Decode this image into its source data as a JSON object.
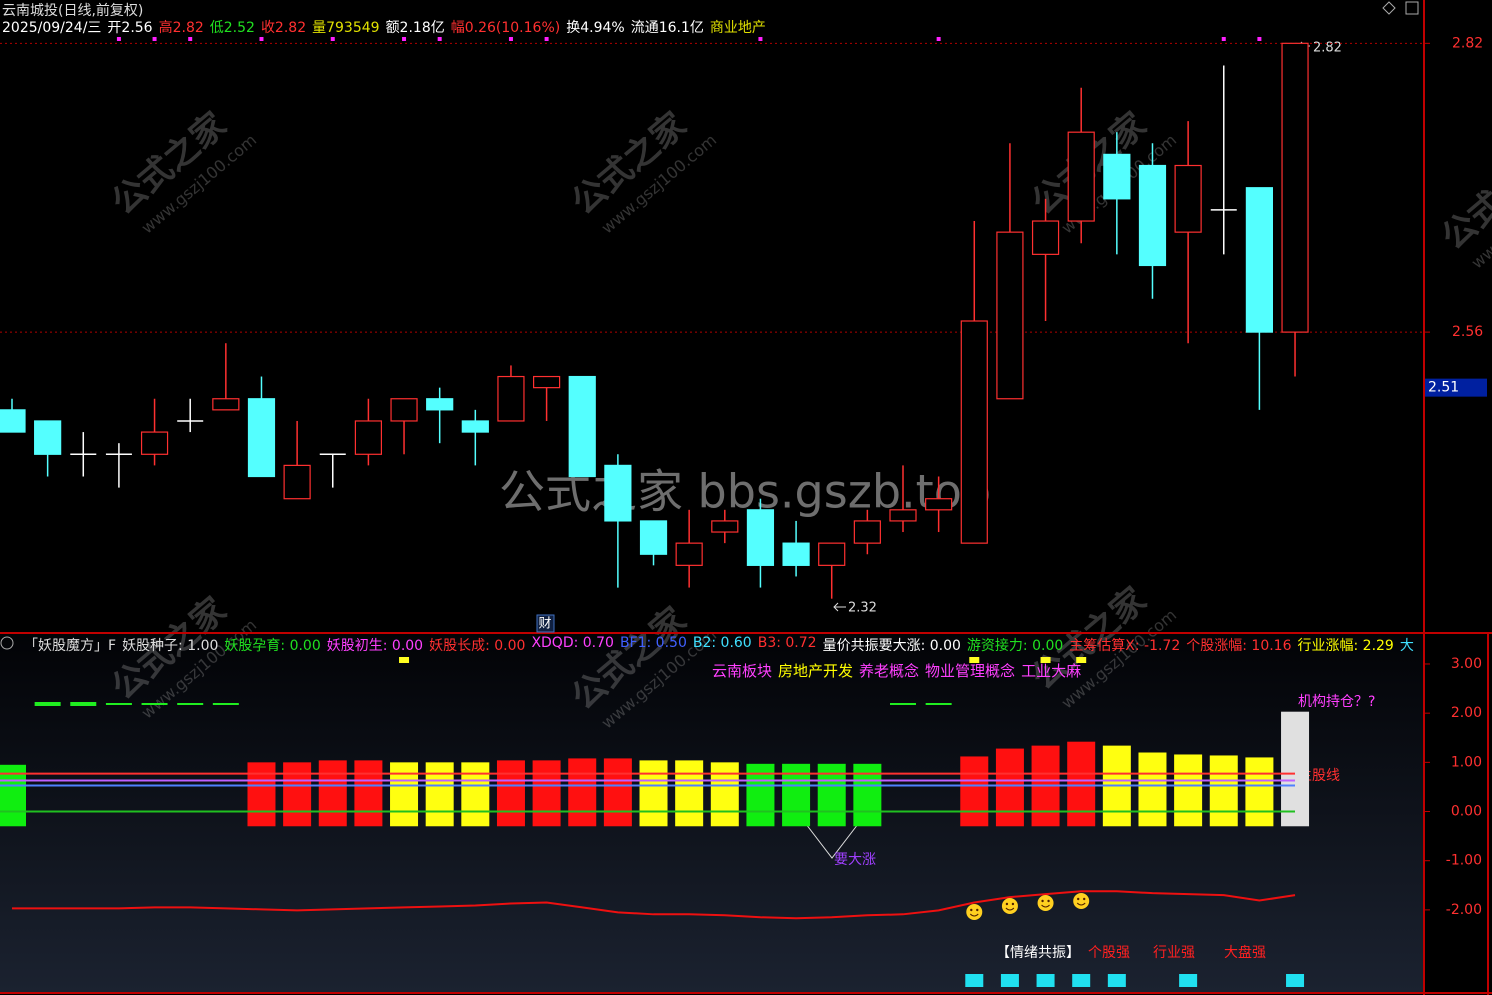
{
  "header": {
    "title": "云南城投(日线,前复权)",
    "quote": [
      {
        "text": "2025/09/24/三",
        "color": "#ffffff"
      },
      {
        "text": "开2.56",
        "color": "#ffffff"
      },
      {
        "text": "高2.82",
        "color": "#ff3030"
      },
      {
        "text": "低2.52",
        "color": "#20e020"
      },
      {
        "text": "收2.82",
        "color": "#ff3030"
      },
      {
        "text": "量793549",
        "color": "#e0e000"
      },
      {
        "text": "额2.18亿",
        "color": "#ffffff"
      },
      {
        "text": "幅0.26(10.16%)",
        "color": "#ff3030"
      },
      {
        "text": "换4.94%",
        "color": "#ffffff"
      },
      {
        "text": "流通16.1亿",
        "color": "#ffffff"
      },
      {
        "text": "商业地产",
        "color": "#e0e000"
      }
    ]
  },
  "indicator_header": [
    {
      "text": "「妖股魔方」F",
      "color": "#dddddd"
    },
    {
      "text": "妖股种子: 1.00",
      "color": "#dddddd"
    },
    {
      "text": "妖股孕育: 0.00",
      "color": "#20e020"
    },
    {
      "text": "妖股初生: 0.00",
      "color": "#ff40ff"
    },
    {
      "text": "妖股长成: 0.00",
      "color": "#ff3030"
    },
    {
      "text": "XDQD: 0.70",
      "color": "#ff40ff"
    },
    {
      "text": "BF1: 0.50",
      "color": "#4060ff"
    },
    {
      "text": "B2: 0.60",
      "color": "#40e0ff"
    },
    {
      "text": "B3: 0.72",
      "color": "#ff3030"
    },
    {
      "text": "量价共振要大涨: 0.00",
      "color": "#ffffff"
    },
    {
      "text": "游资接力: 0.00",
      "color": "#20e020"
    },
    {
      "text": "主筹估算X: -1.72",
      "color": "#ff3030"
    },
    {
      "text": "个股涨幅: 10.16",
      "color": "#ff3030"
    },
    {
      "text": "行业涨幅: 2.29",
      "color": "#ffff00"
    },
    {
      "text": "大",
      "color": "#40e0ff"
    }
  ],
  "concepts": [
    {
      "text": "云南板块",
      "color": "#ff40ff"
    },
    {
      "text": "房地产开发",
      "color": "#ffff00"
    },
    {
      "text": "养老概念",
      "color": "#ff40ff"
    },
    {
      "text": "物业管理概念",
      "color": "#ff40ff"
    },
    {
      "text": "工业大麻",
      "color": "#ff40ff"
    }
  ],
  "labels": {
    "fin": "财",
    "institution": "机构持仓？?",
    "main_line": "主股线",
    "rise": "要大涨",
    "emotion": "【情绪共振】",
    "stock_strong": "个股强",
    "industry_strong": "行业强",
    "market_strong": "大盘强"
  },
  "watermark": {
    "big": "公式之家 bbs.gszb.top",
    "name": "公式之家",
    "url": "www.gszj100.com"
  },
  "chart_data": [
    {
      "type": "candlestick",
      "open": [
        2.49,
        2.48,
        2.45,
        2.45,
        2.45,
        2.48,
        2.49,
        2.5,
        2.41,
        2.45,
        2.45,
        2.48,
        2.5,
        2.48,
        2.48,
        2.51,
        2.52,
        2.44,
        2.39,
        2.35,
        2.38,
        2.4,
        2.37,
        2.35,
        2.37,
        2.39,
        2.4,
        2.37,
        2.5,
        2.63,
        2.66,
        2.72,
        2.71,
        2.65,
        2.67,
        2.69,
        2.56
      ],
      "high": [
        2.5,
        2.48,
        2.47,
        2.46,
        2.5,
        2.5,
        2.55,
        2.52,
        2.48,
        2.45,
        2.5,
        2.5,
        2.51,
        2.49,
        2.53,
        2.52,
        2.52,
        2.45,
        2.39,
        2.4,
        2.4,
        2.41,
        2.39,
        2.37,
        2.4,
        2.44,
        2.43,
        2.66,
        2.73,
        2.68,
        2.78,
        2.74,
        2.73,
        2.75,
        2.8,
        2.69,
        2.82
      ],
      "low": [
        2.47,
        2.43,
        2.43,
        2.42,
        2.44,
        2.47,
        2.49,
        2.43,
        2.41,
        2.42,
        2.44,
        2.45,
        2.46,
        2.44,
        2.48,
        2.48,
        2.43,
        2.33,
        2.35,
        2.33,
        2.37,
        2.33,
        2.34,
        2.32,
        2.36,
        2.38,
        2.38,
        2.37,
        2.5,
        2.57,
        2.64,
        2.63,
        2.59,
        2.55,
        2.63,
        2.49,
        2.52
      ],
      "close": [
        2.47,
        2.45,
        2.45,
        2.45,
        2.47,
        2.48,
        2.5,
        2.43,
        2.44,
        2.45,
        2.48,
        2.5,
        2.49,
        2.47,
        2.52,
        2.52,
        2.43,
        2.39,
        2.36,
        2.37,
        2.39,
        2.35,
        2.35,
        2.37,
        2.39,
        2.4,
        2.41,
        2.57,
        2.65,
        2.66,
        2.74,
        2.68,
        2.62,
        2.71,
        2.67,
        2.56,
        2.82
      ],
      "up_color": "#ff3030",
      "down_color": "#54ffff",
      "doji_color": "#ffffff",
      "ylim": [
        2.29,
        2.85
      ],
      "yticks": [
        2.56,
        2.82
      ],
      "grid": true,
      "marker_value": 2.51
    },
    {
      "type": "bar",
      "values": [
        0.95,
        null,
        null,
        null,
        null,
        null,
        null,
        1.0,
        1.0,
        1.04,
        1.04,
        1.0,
        1.0,
        1.0,
        1.04,
        1.04,
        1.08,
        1.08,
        1.04,
        1.04,
        1.0,
        0.97,
        0.97,
        0.97,
        0.97,
        null,
        null,
        1.12,
        1.28,
        1.34,
        1.42,
        1.34,
        1.2,
        1.16,
        1.14,
        1.1,
        2.03
      ],
      "colors": [
        "#10ee10",
        null,
        null,
        null,
        null,
        null,
        null,
        "#ff1010",
        "#ff1010",
        "#ff1010",
        "#ff1010",
        "#ffff10",
        "#ffff10",
        "#ffff10",
        "#ff1010",
        "#ff1010",
        "#ff1010",
        "#ff1010",
        "#ffff10",
        "#ffff10",
        "#ffff10",
        "#10ee10",
        "#10ee10",
        "#10ee10",
        "#10ee10",
        null,
        null,
        "#ff1010",
        "#ff1010",
        "#ff1010",
        "#ff1010",
        "#ffff10",
        "#ffff10",
        "#ffff10",
        "#ffff10",
        "#ffff10",
        "#e0e0e0"
      ],
      "base": -0.3,
      "lines": [
        {
          "value": 0.77,
          "color": "#ff3030"
        },
        {
          "value": 0.63,
          "color": "#c060ff"
        },
        {
          "value": 0.53,
          "color": "#5080ff"
        },
        {
          "value": 0,
          "color": "#20c020"
        }
      ],
      "curve": {
        "color": "#ee1010",
        "values": [
          -1.97,
          -1.97,
          -1.97,
          -1.97,
          -1.95,
          -1.95,
          -1.97,
          -1.99,
          -2.01,
          -1.99,
          -1.97,
          -1.95,
          -1.93,
          -1.91,
          -1.87,
          -1.85,
          -1.95,
          -2.05,
          -2.09,
          -2.09,
          -2.11,
          -2.15,
          -2.17,
          -2.15,
          -2.11,
          -2.09,
          -2.01,
          -1.85,
          -1.74,
          -1.68,
          -1.62,
          -1.62,
          -1.66,
          -1.68,
          -1.7,
          -1.81,
          -1.7
        ]
      },
      "ylim": [
        -3.69,
        3.63
      ],
      "yticks": [
        {
          "value": 3,
          "label": "3.00"
        },
        {
          "value": 2,
          "label": "2.00"
        },
        {
          "value": 1,
          "label": "1.00"
        },
        {
          "value": 0,
          "label": "0.00"
        },
        {
          "value": -1,
          "label": "-1.00"
        },
        {
          "value": -2,
          "label": "-2.00"
        }
      ]
    }
  ]
}
